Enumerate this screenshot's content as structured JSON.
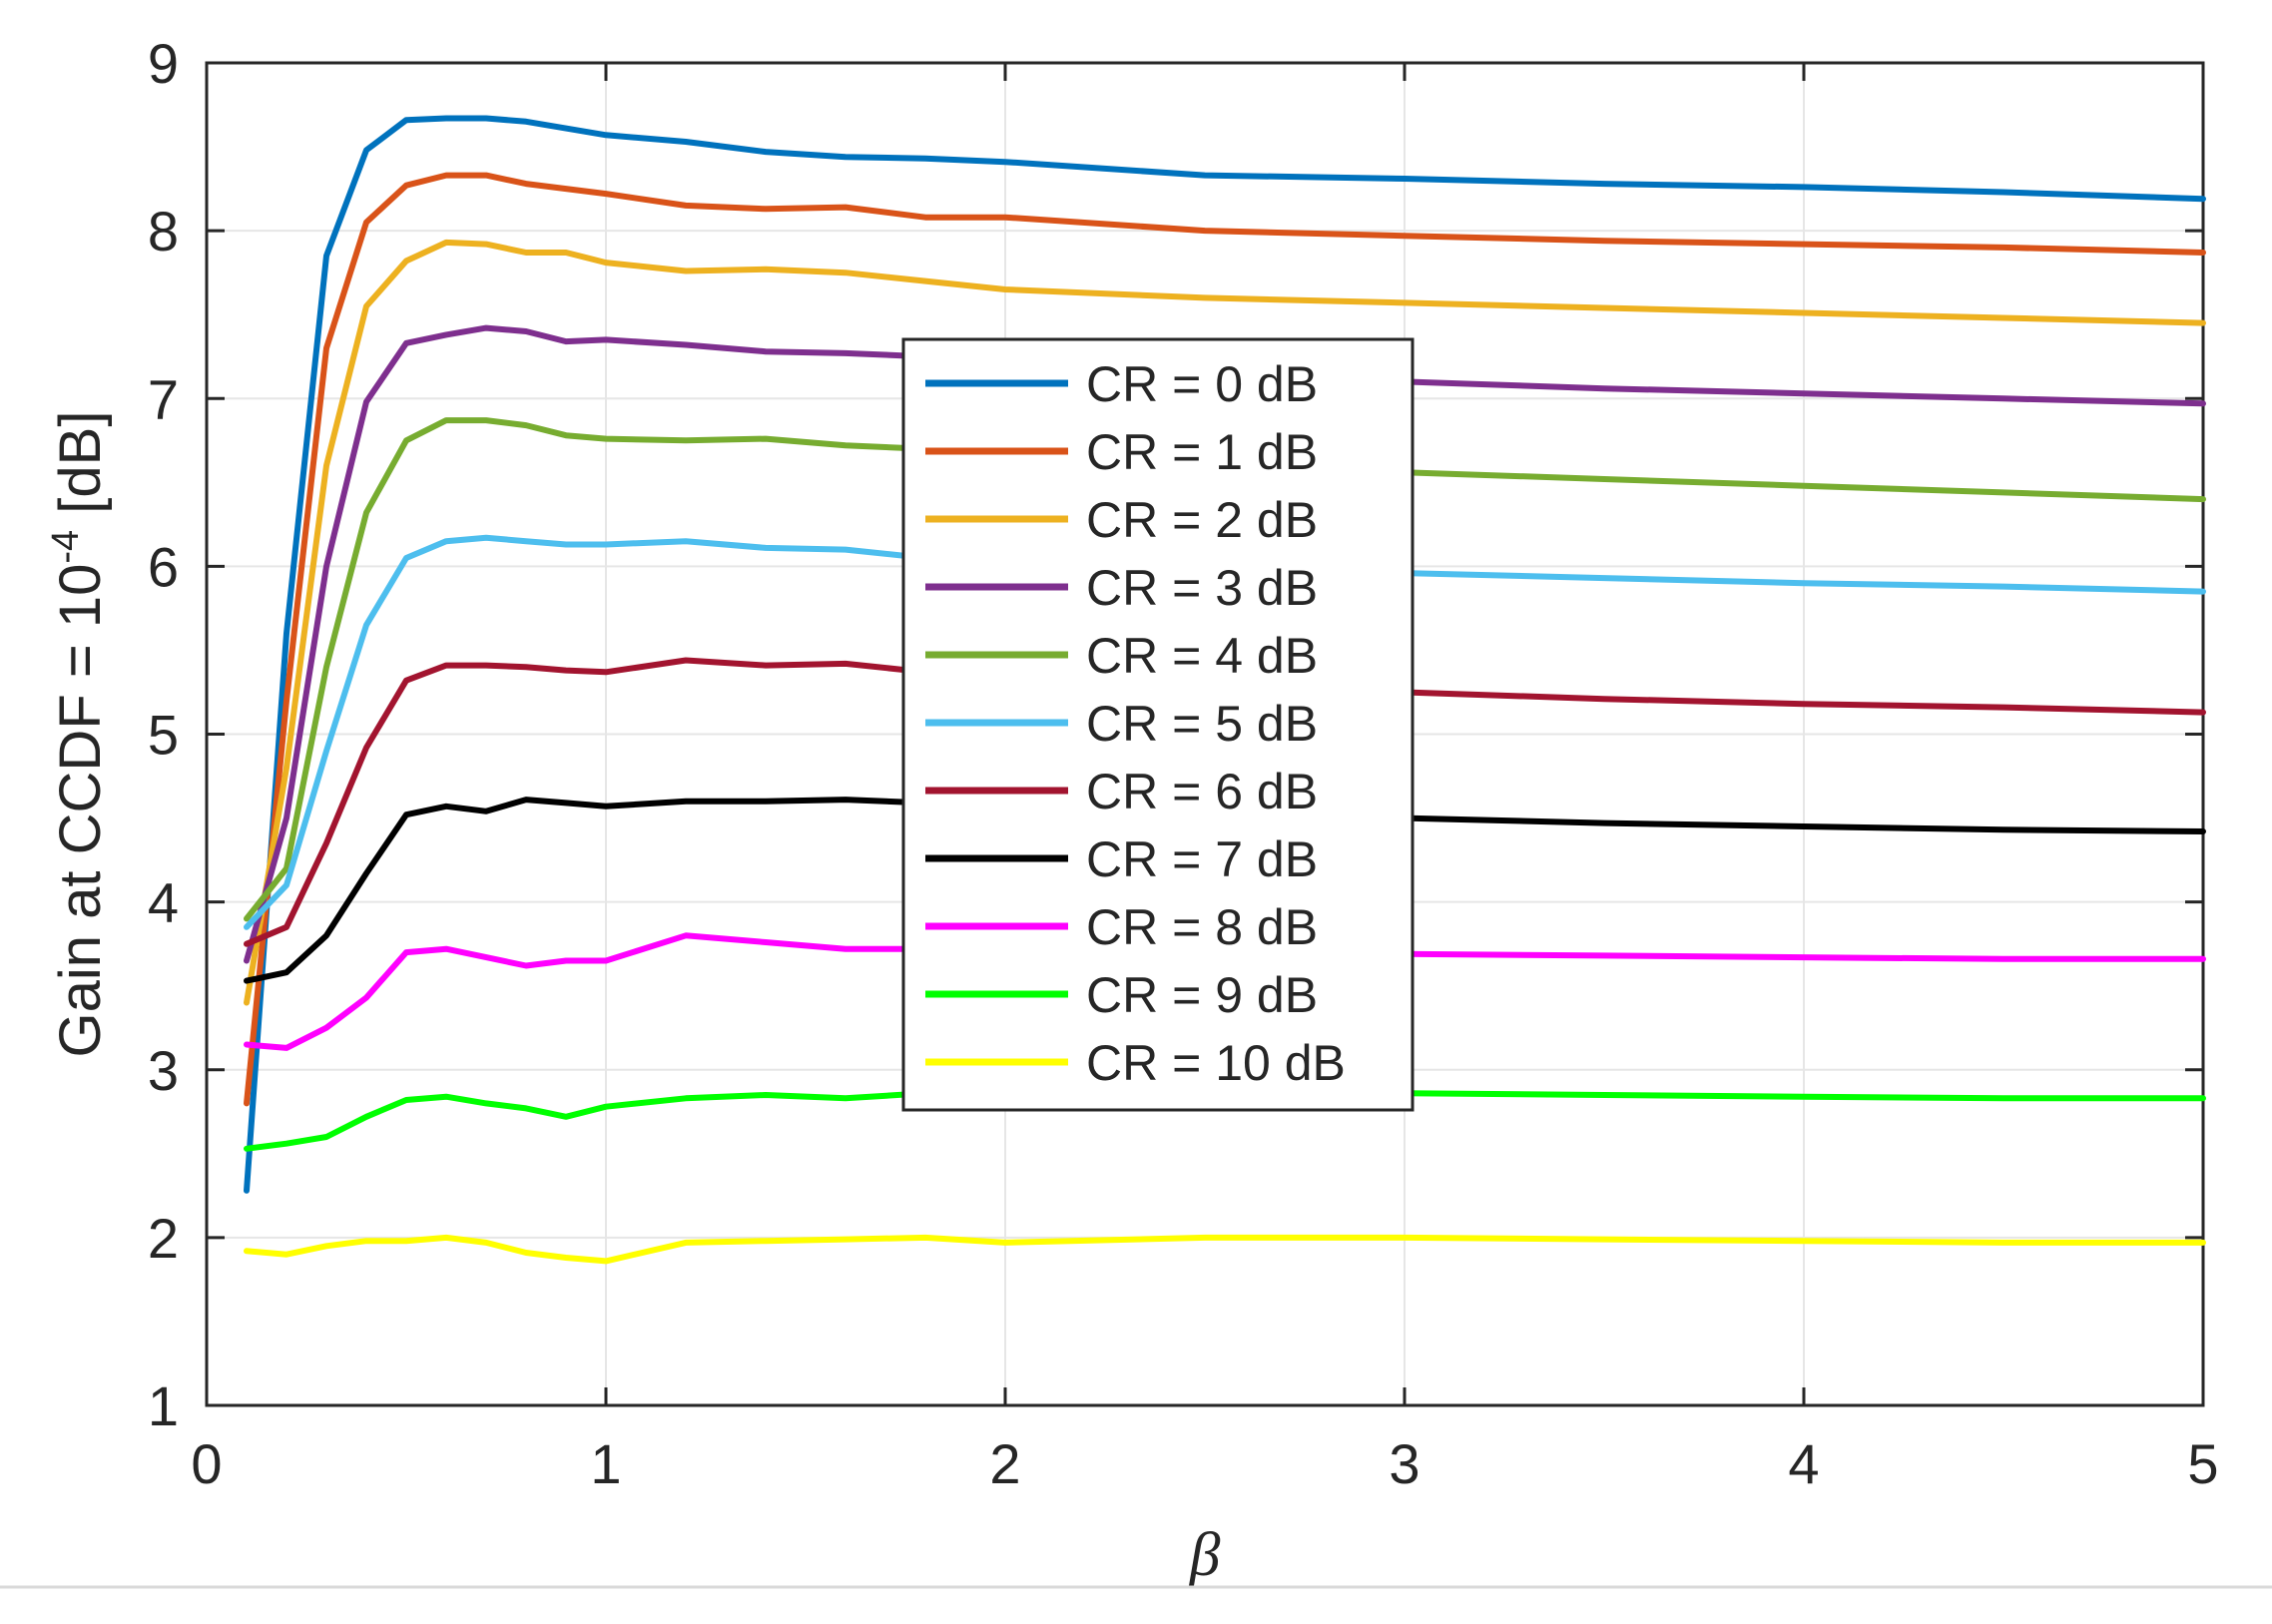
{
  "chart_data": {
    "type": "line",
    "title": "",
    "xlabel": "β",
    "ylabel": "Gain at CCDF = 10",
    "ylabel_superscript": "-4",
    "ylabel_suffix": " [dB]",
    "xlim": [
      0,
      5
    ],
    "ylim": [
      1,
      9
    ],
    "xticks": [
      "0",
      "1",
      "2",
      "3",
      "4",
      "5"
    ],
    "yticks": [
      "1",
      "2",
      "3",
      "4",
      "5",
      "6",
      "7",
      "8",
      "9"
    ],
    "grid": true,
    "legend_position": "center",
    "x": [
      0.1,
      0.2,
      0.3,
      0.4,
      0.5,
      0.6,
      0.7,
      0.8,
      0.9,
      1.0,
      1.2,
      1.4,
      1.6,
      1.8,
      2.0,
      2.5,
      3.0,
      3.5,
      4.0,
      4.5,
      5.0
    ],
    "series": [
      {
        "name": "CR = 0 dB",
        "color": "#0072BD",
        "values": [
          2.28,
          5.6,
          7.85,
          8.48,
          8.66,
          8.67,
          8.67,
          8.65,
          8.61,
          8.57,
          8.53,
          8.47,
          8.44,
          8.43,
          8.41,
          8.33,
          8.31,
          8.28,
          8.26,
          8.23,
          8.19
        ]
      },
      {
        "name": "CR = 1 dB",
        "color": "#D95319",
        "values": [
          2.8,
          5.2,
          7.3,
          8.05,
          8.27,
          8.33,
          8.33,
          8.28,
          8.25,
          8.22,
          8.15,
          8.13,
          8.14,
          8.08,
          8.08,
          8.0,
          7.97,
          7.94,
          7.92,
          7.9,
          7.87
        ]
      },
      {
        "name": "CR = 2 dB",
        "color": "#EDB120",
        "values": [
          3.4,
          4.8,
          6.6,
          7.55,
          7.82,
          7.93,
          7.92,
          7.87,
          7.87,
          7.81,
          7.76,
          7.77,
          7.75,
          7.7,
          7.65,
          7.6,
          7.57,
          7.54,
          7.51,
          7.48,
          7.45
        ]
      },
      {
        "name": "CR = 3 dB",
        "color": "#7E2F8E",
        "values": [
          3.65,
          4.5,
          6.0,
          6.98,
          7.33,
          7.38,
          7.42,
          7.4,
          7.34,
          7.35,
          7.32,
          7.28,
          7.27,
          7.25,
          7.2,
          7.15,
          7.1,
          7.06,
          7.03,
          7.0,
          6.97
        ]
      },
      {
        "name": "CR = 4 dB",
        "color": "#77AC30",
        "values": [
          3.9,
          4.2,
          5.4,
          6.32,
          6.75,
          6.87,
          6.87,
          6.84,
          6.78,
          6.76,
          6.75,
          6.76,
          6.72,
          6.7,
          6.65,
          6.6,
          6.56,
          6.52,
          6.48,
          6.44,
          6.4
        ]
      },
      {
        "name": "CR = 5 dB",
        "color": "#4DBEEE",
        "values": [
          3.85,
          4.1,
          4.9,
          5.65,
          6.05,
          6.15,
          6.17,
          6.15,
          6.13,
          6.13,
          6.15,
          6.11,
          6.1,
          6.05,
          6.03,
          5.99,
          5.96,
          5.93,
          5.9,
          5.88,
          5.85
        ]
      },
      {
        "name": "CR = 6 dB",
        "color": "#A2142F",
        "values": [
          3.75,
          3.85,
          4.35,
          4.92,
          5.32,
          5.41,
          5.41,
          5.4,
          5.38,
          5.37,
          5.44,
          5.41,
          5.42,
          5.37,
          5.35,
          5.3,
          5.25,
          5.21,
          5.18,
          5.16,
          5.13
        ]
      },
      {
        "name": "CR = 7 dB",
        "color": "#000000",
        "values": [
          3.53,
          3.58,
          3.8,
          4.17,
          4.52,
          4.57,
          4.54,
          4.61,
          4.59,
          4.57,
          4.6,
          4.6,
          4.61,
          4.59,
          4.57,
          4.53,
          4.5,
          4.47,
          4.45,
          4.43,
          4.42
        ]
      },
      {
        "name": "CR = 8 dB",
        "color": "#FF00FF",
        "values": [
          3.15,
          3.13,
          3.25,
          3.43,
          3.7,
          3.72,
          3.67,
          3.62,
          3.65,
          3.65,
          3.8,
          3.76,
          3.72,
          3.72,
          3.71,
          3.7,
          3.69,
          3.68,
          3.67,
          3.66,
          3.66
        ]
      },
      {
        "name": "CR = 9 dB",
        "color": "#00FF00",
        "values": [
          2.53,
          2.56,
          2.6,
          2.72,
          2.82,
          2.84,
          2.8,
          2.77,
          2.72,
          2.78,
          2.83,
          2.85,
          2.83,
          2.86,
          2.86,
          2.86,
          2.86,
          2.85,
          2.84,
          2.83,
          2.83
        ]
      },
      {
        "name": "CR = 10 dB",
        "color": "#FFFF00",
        "values": [
          1.92,
          1.9,
          1.95,
          1.98,
          1.98,
          2.0,
          1.97,
          1.91,
          1.88,
          1.86,
          1.97,
          1.98,
          1.99,
          2.0,
          1.97,
          2.0,
          2.0,
          1.99,
          1.98,
          1.97,
          1.97
        ]
      }
    ]
  }
}
